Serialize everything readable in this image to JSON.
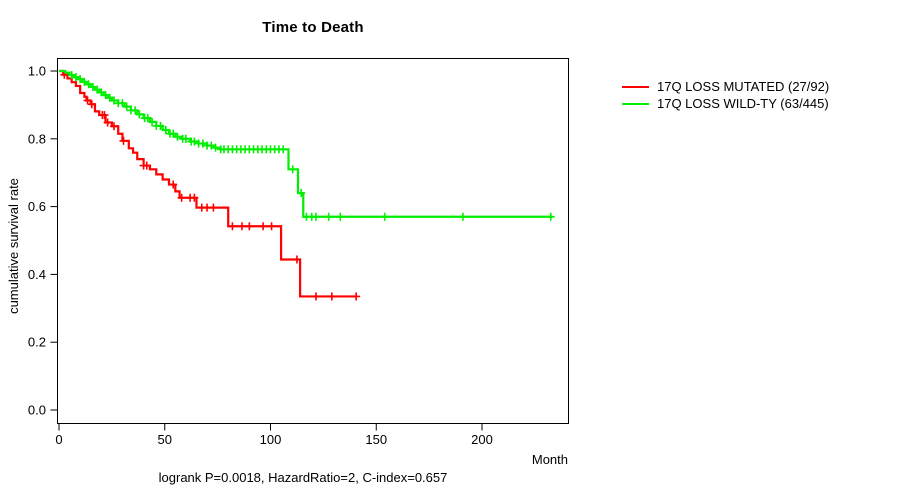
{
  "chart_data": {
    "type": "line",
    "subtype": "kaplan_meier_step",
    "title": "Time to Death",
    "xlabel": "Month",
    "ylabel": "cumulative survival rate",
    "annotation": "logrank P=0.0018, HazardRatio=2, C-index=0.657",
    "xlim": [
      0,
      240
    ],
    "ylim": [
      0.0,
      1.0
    ],
    "xticks": [
      0,
      50,
      100,
      150,
      200
    ],
    "yticks": [
      0.0,
      0.2,
      0.4,
      0.6,
      0.8,
      1.0
    ],
    "grid": false,
    "legend_position": "right-outside",
    "series": [
      {
        "name": "17Q LOSS MUTATED (27/92)",
        "color": "#ff0000",
        "end_month": 141,
        "steps": [
          [
            0,
            1.0
          ],
          [
            2,
            0.989
          ],
          [
            4,
            0.978
          ],
          [
            6,
            0.967
          ],
          [
            8,
            0.956
          ],
          [
            10,
            0.935
          ],
          [
            12,
            0.924
          ],
          [
            13,
            0.913
          ],
          [
            15,
            0.902
          ],
          [
            17,
            0.881
          ],
          [
            19,
            0.87
          ],
          [
            22,
            0.848
          ],
          [
            25,
            0.837
          ],
          [
            28,
            0.815
          ],
          [
            30,
            0.794
          ],
          [
            33,
            0.772
          ],
          [
            35,
            0.759
          ],
          [
            37,
            0.74
          ],
          [
            40,
            0.721
          ],
          [
            43,
            0.71
          ],
          [
            46,
            0.695
          ],
          [
            49,
            0.68
          ],
          [
            52,
            0.665
          ],
          [
            55,
            0.645
          ],
          [
            57,
            0.626
          ],
          [
            65,
            0.597
          ],
          [
            80,
            0.542
          ],
          [
            105,
            0.444
          ],
          [
            114,
            0.335
          ]
        ],
        "censor_marks": [
          2.5,
          13.5,
          15.5,
          20.5,
          21.5,
          23,
          26,
          30.5,
          40,
          41.5,
          54,
          58,
          62,
          64,
          67.5,
          70,
          73,
          82,
          86.5,
          90,
          96.5,
          100.5,
          112.5,
          121.5,
          129,
          140.5
        ]
      },
      {
        "name": "17Q LOSS WILD-TY (63/445)",
        "color": "#00ee00",
        "end_month": 233.5,
        "steps": [
          [
            0,
            1.0
          ],
          [
            3,
            0.995
          ],
          [
            5,
            0.988
          ],
          [
            7,
            0.982
          ],
          [
            9,
            0.976
          ],
          [
            11,
            0.968
          ],
          [
            13,
            0.961
          ],
          [
            15,
            0.953
          ],
          [
            17,
            0.945
          ],
          [
            19,
            0.937
          ],
          [
            21,
            0.929
          ],
          [
            23,
            0.921
          ],
          [
            25,
            0.913
          ],
          [
            28,
            0.905
          ],
          [
            31,
            0.895
          ],
          [
            34,
            0.884
          ],
          [
            37,
            0.872
          ],
          [
            40,
            0.861
          ],
          [
            43,
            0.85
          ],
          [
            46,
            0.838
          ],
          [
            49,
            0.826
          ],
          [
            52,
            0.815
          ],
          [
            55,
            0.806
          ],
          [
            58,
            0.8
          ],
          [
            62,
            0.792
          ],
          [
            66,
            0.786
          ],
          [
            70,
            0.78
          ],
          [
            73,
            0.774
          ],
          [
            76,
            0.769
          ],
          [
            108.5,
            0.71
          ],
          [
            113,
            0.64
          ],
          [
            115.5,
            0.57
          ]
        ],
        "censor_marks": [
          6,
          8,
          10,
          12,
          14,
          16,
          18,
          20,
          22,
          24,
          26,
          28,
          30,
          32,
          34,
          36,
          38,
          40.5,
          42,
          44,
          46,
          48,
          50.5,
          52.5,
          54,
          56,
          58.5,
          60,
          62.5,
          64,
          66,
          68,
          70,
          72,
          74,
          76.5,
          78,
          80,
          82,
          84,
          86,
          88,
          90,
          92,
          94,
          96,
          98,
          100,
          102,
          104,
          106,
          110.5,
          114.5,
          117,
          119.5,
          121.5,
          127.5,
          133,
          154,
          191,
          232.5
        ]
      }
    ]
  }
}
